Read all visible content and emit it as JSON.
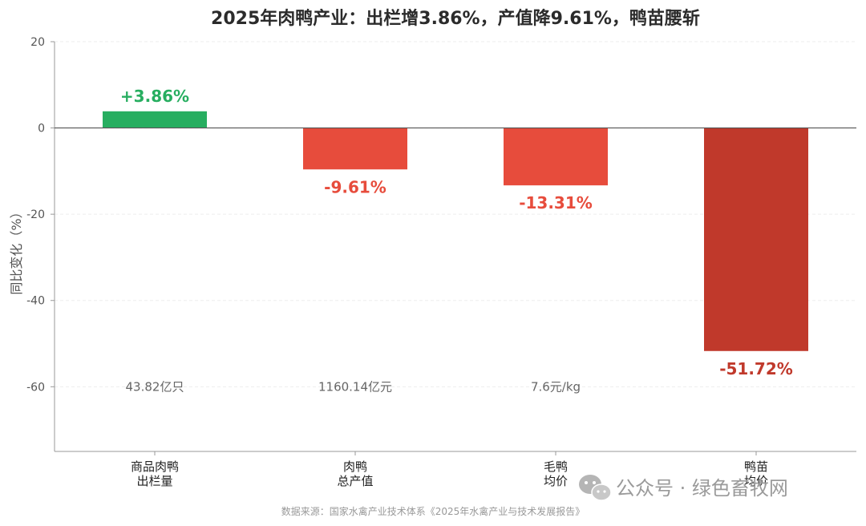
{
  "chart_data": {
    "type": "bar",
    "title": "2025年肉鸭产业：出栏增3.86%，产值降9.61%，鸭苗腰斩",
    "ylabel": "同比变化（%）",
    "ylim": [
      -75,
      20
    ],
    "yticks": [
      20,
      0,
      -20,
      -40,
      -60
    ],
    "grid": true,
    "categories": [
      {
        "line1": "商品肉鸭",
        "line2": "出栏量"
      },
      {
        "line1": "肉鸭",
        "line2": "总产值"
      },
      {
        "line1": "毛鸭",
        "line2": "均价"
      },
      {
        "line1": "鸭苗",
        "line2": "均价"
      }
    ],
    "values": [
      3.86,
      -9.61,
      -13.31,
      -51.72
    ],
    "value_labels": [
      "+3.86%",
      "-9.61%",
      "-13.31%",
      "-51.72%"
    ],
    "notes": [
      "43.82亿只",
      "1160.14亿元",
      "7.6元/kg",
      ""
    ],
    "colors": [
      "#27ae60",
      "#e74c3c",
      "#e74c3c",
      "#c0392b"
    ]
  },
  "source": "数据来源：国家水禽产业技术体系《2025年水禽产业与技术发展报告》",
  "watermark": "公众号 · 绿色畜牧网"
}
